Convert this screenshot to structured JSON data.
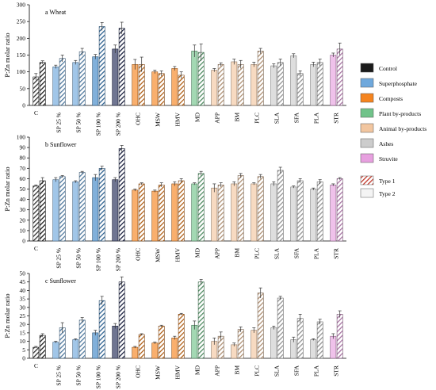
{
  "colors": {
    "C": "#1b1b1b",
    "SP": "#6fa8dc",
    "COMP": "#f5841f",
    "PLANT": "#71c38a",
    "ANIM": "#f2c6a0",
    "ASH": "#cccccc",
    "STR": "#e7a0df",
    "SP100": "#3d85c6",
    "SP200": "#222a55"
  },
  "legend": {
    "groups": [
      {
        "label": "Control",
        "key": "C"
      },
      {
        "label": "Superphosphate",
        "key": "SP"
      },
      {
        "label": "Composts",
        "key": "COMP"
      },
      {
        "label": "Plant by-products",
        "key": "PLANT"
      },
      {
        "label": "Animal by-products",
        "key": "ANIM"
      },
      {
        "label": "Ashes",
        "key": "ASH"
      },
      {
        "label": "Struvite",
        "key": "STR"
      }
    ],
    "types": [
      {
        "label": "Type 1",
        "pattern": true
      },
      {
        "label": "Type 2",
        "pattern": false
      }
    ]
  },
  "chart_data": [
    {
      "type": "bar",
      "title": "a  Wheat",
      "ylabel": "P:Zn molar ratio",
      "ylim": [
        0,
        300
      ],
      "yticks": [
        0,
        50,
        100,
        150,
        200,
        250,
        300
      ],
      "categories": [
        "C",
        "SP 25 %",
        "SP 50 %",
        "SP 100 %",
        "SP 200 %",
        "OHC",
        "MSW",
        "HMV",
        "MD",
        "APP",
        "BM",
        "PLC",
        "SLA",
        "SFA",
        "PLA",
        "STR"
      ],
      "groups": [
        "C",
        "SP",
        "SP",
        "SP",
        "SP",
        "COMP",
        "COMP",
        "COMP",
        "PLANT",
        "ANIM",
        "ANIM",
        "ANIM",
        "ASH",
        "ASH",
        "ASH",
        "STR"
      ],
      "series": [
        {
          "name": "Type 2",
          "values": [
            85,
            115,
            128,
            145,
            168,
            122,
            100,
            110,
            162,
            105,
            130,
            122,
            118,
            148,
            122,
            150
          ],
          "errors": [
            10,
            5,
            6,
            7,
            12,
            15,
            5,
            6,
            18,
            5,
            8,
            7,
            6,
            6,
            7,
            6
          ]
        },
        {
          "name": "Type 1",
          "values": [
            128,
            140,
            160,
            235,
            230,
            122,
            95,
            90,
            158,
            122,
            122,
            162,
            128,
            95,
            128,
            168
          ],
          "errors": [
            5,
            10,
            10,
            12,
            18,
            22,
            8,
            10,
            25,
            5,
            12,
            8,
            10,
            8,
            10,
            18
          ]
        }
      ]
    },
    {
      "type": "bar",
      "title": "b  Sunflower",
      "ylabel": "P:Zn molar ratio",
      "ylim": [
        0,
        100
      ],
      "yticks": [
        0,
        10,
        20,
        30,
        40,
        50,
        60,
        70,
        80,
        90,
        100
      ],
      "categories": [
        "C",
        "SP 25 %",
        "SP 50 %",
        "SP 100 %",
        "SP 200 %",
        "OHC",
        "MSW",
        "HMV",
        "MD",
        "APP",
        "BM",
        "PLC",
        "SLA",
        "SFA",
        "PLA",
        "STR"
      ],
      "groups": [
        "C",
        "SP",
        "SP",
        "SP",
        "SP",
        "COMP",
        "COMP",
        "COMP",
        "PLANT",
        "ANIM",
        "ANIM",
        "ANIM",
        "ASH",
        "ASH",
        "ASH",
        "STR"
      ],
      "series": [
        {
          "name": "Type 2",
          "values": [
            53,
            59,
            57,
            61,
            59,
            49,
            48,
            55,
            55,
            51,
            55,
            55,
            55,
            52,
            50,
            54
          ],
          "errors": [
            1,
            2,
            1,
            3,
            2,
            1,
            1,
            2,
            1,
            4,
            2,
            1,
            2,
            1,
            1,
            1
          ]
        },
        {
          "name": "Type 1",
          "values": [
            58,
            62,
            66,
            70,
            89,
            55,
            54,
            58,
            65,
            54,
            63,
            62,
            68,
            58,
            57,
            60
          ],
          "errors": [
            3,
            1,
            1,
            2,
            3,
            1,
            2,
            2,
            2,
            2,
            2,
            2,
            3,
            2,
            2,
            1
          ]
        }
      ]
    },
    {
      "type": "bar",
      "title": "c  Sunflower",
      "ylabel": "P:Zn molar ratio",
      "ylim": [
        0,
        50
      ],
      "yticks": [
        0,
        5,
        10,
        15,
        20,
        25,
        30,
        35,
        40,
        45,
        50
      ],
      "categories": [
        "C",
        "SP 25 %",
        "SP 50 %",
        "SP 100 %",
        "SP 200 %",
        "OHC",
        "MSW",
        "HMV",
        "MD",
        "APP",
        "BM",
        "PLC",
        "SLA",
        "SFA",
        "PLA",
        "STR"
      ],
      "groups": [
        "C",
        "SP",
        "SP",
        "SP",
        "SP",
        "COMP",
        "COMP",
        "COMP",
        "PLANT",
        "ANIM",
        "ANIM",
        "ANIM",
        "ASH",
        "ASH",
        "ASH",
        "STR"
      ],
      "series": [
        {
          "name": "Type 2",
          "values": [
            6.5,
            9.5,
            11,
            15,
            19,
            6.5,
            9,
            12,
            19.5,
            10,
            8,
            16.5,
            18,
            11,
            11,
            13
          ],
          "errors": [
            0.5,
            0.5,
            0.5,
            1.5,
            1.5,
            0.5,
            0.5,
            1,
            2.5,
            2,
            1,
            1.5,
            1,
            1.5,
            0.5,
            1.5
          ]
        },
        {
          "name": "Type 1",
          "values": [
            13.5,
            18,
            22.5,
            34,
            45,
            14,
            19,
            26,
            45,
            13,
            17,
            38.5,
            35.5,
            23.5,
            21.5,
            26
          ],
          "errors": [
            1,
            3,
            1.5,
            2.5,
            3,
            0.5,
            0.5,
            0.5,
            1.5,
            2.5,
            1.5,
            3,
            1,
            2.5,
            1.5,
            2
          ]
        }
      ]
    }
  ]
}
